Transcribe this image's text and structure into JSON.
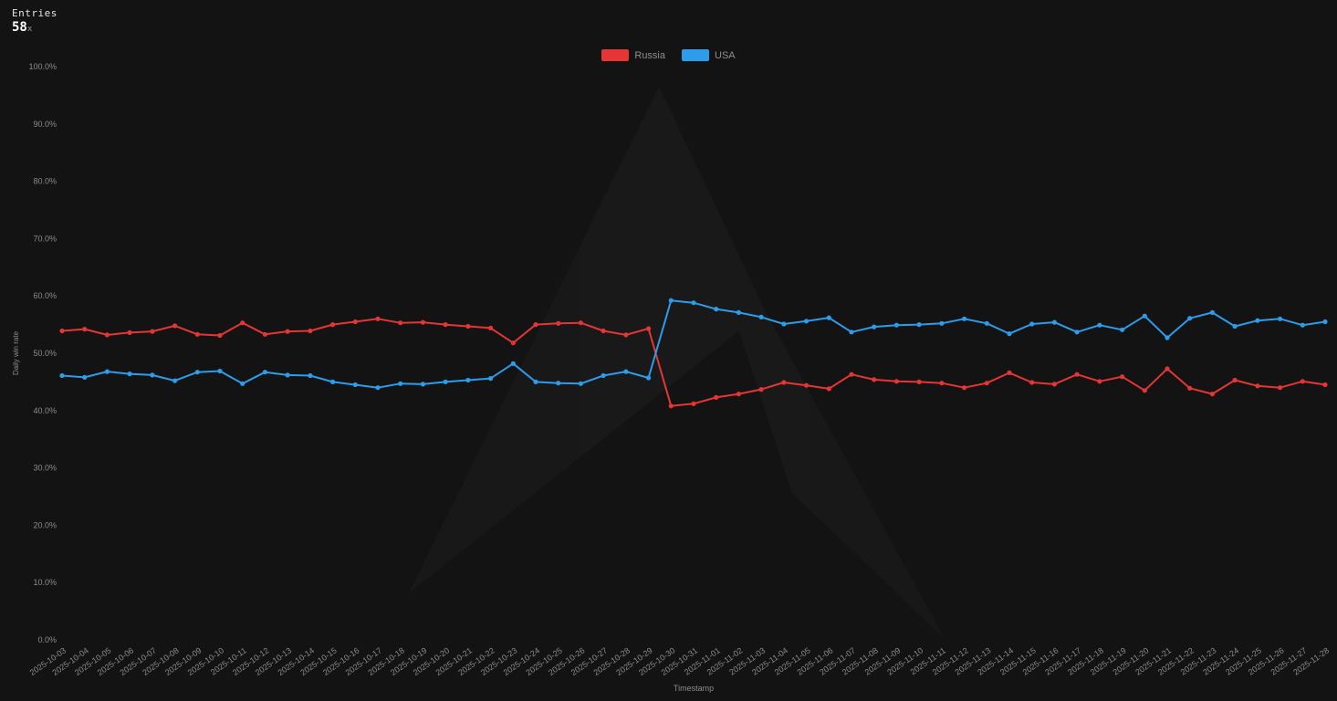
{
  "header": {
    "entries_label": "Entries",
    "entries_count": "58",
    "entries_suffix": "x"
  },
  "chart_data": {
    "type": "line",
    "title": "",
    "xlabel": "Timestamp",
    "ylabel": "Daily win rate",
    "ylim": [
      0,
      100
    ],
    "ytick_step": 10,
    "ytick_format": "percent_one_decimal",
    "grid": false,
    "markers": true,
    "legend_position": "top-center",
    "x": [
      "2025-10-03",
      "2025-10-04",
      "2025-10-05",
      "2025-10-06",
      "2025-10-07",
      "2025-10-08",
      "2025-10-09",
      "2025-10-10",
      "2025-10-11",
      "2025-10-12",
      "2025-10-13",
      "2025-10-14",
      "2025-10-15",
      "2025-10-16",
      "2025-10-17",
      "2025-10-18",
      "2025-10-19",
      "2025-10-20",
      "2025-10-21",
      "2025-10-22",
      "2025-10-23",
      "2025-10-24",
      "2025-10-25",
      "2025-10-26",
      "2025-10-27",
      "2025-10-28",
      "2025-10-29",
      "2025-10-30",
      "2025-10-31",
      "2025-11-01",
      "2025-11-02",
      "2025-11-03",
      "2025-11-04",
      "2025-11-05",
      "2025-11-06",
      "2025-11-07",
      "2025-11-08",
      "2025-11-09",
      "2025-11-10",
      "2025-11-11",
      "2025-11-12",
      "2025-11-13",
      "2025-11-14",
      "2025-11-15",
      "2025-11-16",
      "2025-11-17",
      "2025-11-18",
      "2025-11-19",
      "2025-11-20",
      "2025-11-21",
      "2025-11-22",
      "2025-11-23",
      "2025-11-24",
      "2025-11-25",
      "2025-11-26",
      "2025-11-27",
      "2025-11-28"
    ],
    "series": [
      {
        "name": "Russia",
        "color": "#e53535",
        "values": [
          53.9,
          54.2,
          53.2,
          53.6,
          53.8,
          54.8,
          53.3,
          53.1,
          55.3,
          53.3,
          53.8,
          53.9,
          55.0,
          55.5,
          56.0,
          55.3,
          55.4,
          55.0,
          54.7,
          54.4,
          51.8,
          55.0,
          55.2,
          55.3,
          53.9,
          53.2,
          54.3,
          40.8,
          41.2,
          42.3,
          42.9,
          43.7,
          44.9,
          44.4,
          43.8,
          46.3,
          45.4,
          45.1,
          45.0,
          44.8,
          44.0,
          44.8,
          46.6,
          44.9,
          44.6,
          46.3,
          45.1,
          45.9,
          43.5,
          47.3,
          43.9,
          42.9,
          45.3,
          44.3,
          44.0,
          45.1,
          44.5
        ]
      },
      {
        "name": "USA",
        "color": "#2d9ceb",
        "values": [
          46.1,
          45.8,
          46.8,
          46.4,
          46.2,
          45.2,
          46.7,
          46.9,
          44.7,
          46.7,
          46.2,
          46.1,
          45.0,
          44.5,
          44.0,
          44.7,
          44.6,
          45.0,
          45.3,
          45.6,
          48.2,
          45.0,
          44.8,
          44.7,
          46.1,
          46.8,
          45.7,
          59.2,
          58.8,
          57.7,
          57.1,
          56.3,
          55.1,
          55.6,
          56.2,
          53.7,
          54.6,
          54.9,
          55.0,
          55.2,
          56.0,
          55.2,
          53.4,
          55.1,
          55.4,
          53.7,
          54.9,
          54.1,
          56.5,
          52.7,
          56.1,
          57.1,
          54.7,
          55.7,
          56.0,
          54.9,
          55.5
        ]
      }
    ]
  }
}
